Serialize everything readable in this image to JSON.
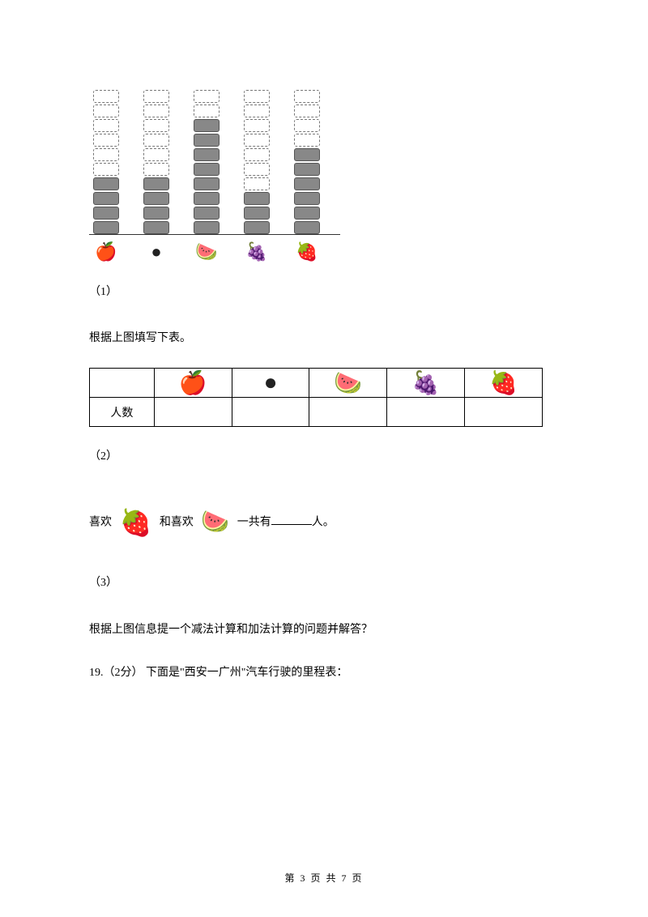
{
  "chart": {
    "type": "pictograph-bar",
    "max_blocks": 10,
    "block_filled_color": "#888888",
    "block_border_color": "#777777",
    "axis_color": "#333333",
    "columns": [
      {
        "icon": "apple-icon",
        "glyph": "🍎",
        "filled": 4,
        "total": 10
      },
      {
        "icon": "orange-icon",
        "glyph": "●",
        "filled": 4,
        "total": 10
      },
      {
        "icon": "watermelon-icon",
        "glyph": "🍉",
        "filled": 8,
        "total": 10
      },
      {
        "icon": "grape-icon",
        "glyph": "🍇",
        "filled": 3,
        "total": 10
      },
      {
        "icon": "strawberry-icon",
        "glyph": "🍓",
        "filled": 6,
        "total": 10
      }
    ]
  },
  "q1": {
    "num": "（1）",
    "text": "根据上图填写下表。",
    "table": {
      "row1_first": "",
      "row2_first": "人数",
      "icons": [
        "🍎",
        "●",
        "🍉",
        "🍇",
        "🍓"
      ]
    }
  },
  "q2": {
    "num": "（2）",
    "prefix": "喜欢",
    "mid": "和喜欢",
    "suffix": "一共有",
    "tail": "人。",
    "icon1": "🍓",
    "icon2": "🍉"
  },
  "q3": {
    "num": "（3）",
    "text": "根据上图信息提一个减法计算和加法计算的问题并解答？"
  },
  "q19": {
    "text": "19.（2分） 下面是\"西安一广州\"汽车行驶的里程表："
  },
  "footer": "第 3 页 共 7 页"
}
